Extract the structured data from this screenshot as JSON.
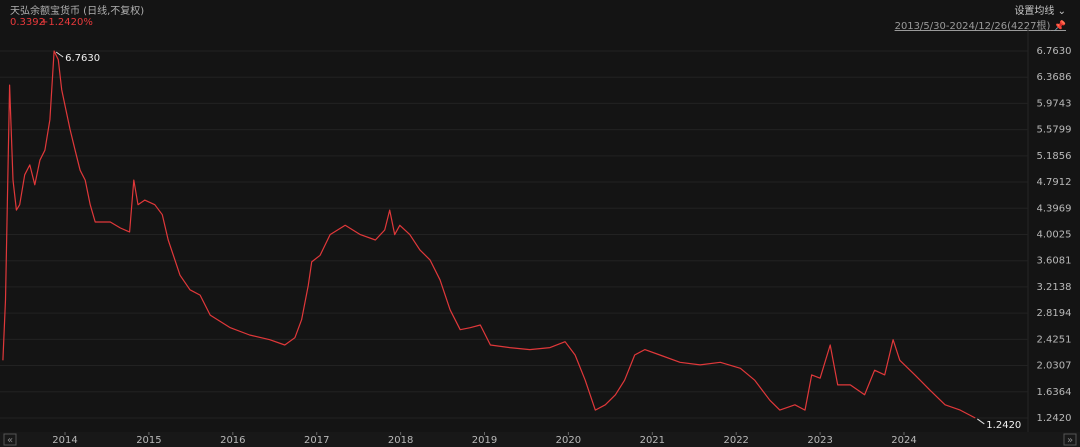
{
  "header": {
    "title": "天弘余额宝货币 (日线,不复权)",
    "change": "0.3392",
    "change_pct": "+1.2420%",
    "ma_setting": "设置均线",
    "range": "2013/5/30-2024/12/26(4227根)"
  },
  "chart_data": {
    "type": "line",
    "color": "#e0383a",
    "grid": true,
    "x": [
      2013.26,
      2013.29,
      2013.34,
      2013.38,
      2013.42,
      2013.46,
      2013.52,
      2013.58,
      2013.64,
      2013.7,
      2013.76,
      2013.82,
      2013.87,
      2013.92,
      2013.96,
      2014.01,
      2014.06,
      2014.12,
      2014.18,
      2014.24,
      2014.3,
      2014.36,
      2014.54,
      2014.66,
      2014.77,
      2014.82,
      2014.87,
      2014.95,
      2015.07,
      2015.16,
      2015.23,
      2015.31,
      2015.37,
      2015.49,
      2015.61,
      2015.73,
      2015.97,
      2016.2,
      2016.44,
      2016.62,
      2016.74,
      2016.82,
      2016.9,
      2016.94,
      2017.04,
      2017.16,
      2017.34,
      2017.52,
      2017.7,
      2017.81,
      2017.87,
      2017.93,
      2017.99,
      2018.11,
      2018.23,
      2018.35,
      2018.47,
      2018.59,
      2018.71,
      2018.83,
      2018.95,
      2019.07,
      2019.3,
      2019.54,
      2019.78,
      2019.96,
      2020.08,
      2020.2,
      2020.32,
      2020.44,
      2020.56,
      2020.67,
      2020.79,
      2020.91,
      2021.09,
      2021.33,
      2021.57,
      2021.81,
      2022.05,
      2022.22,
      2022.4,
      2022.52,
      2022.7,
      2022.82,
      2022.9,
      2023.0,
      2023.12,
      2023.21,
      2023.36,
      2023.53,
      2023.65,
      2023.77,
      2023.87,
      2023.95,
      2024.13,
      2024.31,
      2024.49,
      2024.67,
      2024.85
    ],
    "values": [
      2.11,
      3.02,
      6.25,
      4.82,
      4.37,
      4.45,
      4.9,
      5.05,
      4.75,
      5.12,
      5.27,
      5.73,
      6.763,
      6.63,
      6.18,
      5.88,
      5.58,
      5.27,
      4.97,
      4.82,
      4.45,
      4.19,
      4.19,
      4.1,
      4.04,
      4.82,
      4.45,
      4.52,
      4.45,
      4.3,
      3.92,
      3.62,
      3.39,
      3.17,
      3.09,
      2.79,
      2.6,
      2.49,
      2.42,
      2.34,
      2.45,
      2.72,
      3.24,
      3.59,
      3.69,
      4.0,
      4.14,
      4.0,
      3.92,
      4.07,
      4.37,
      4.0,
      4.14,
      4.0,
      3.77,
      3.62,
      3.32,
      2.87,
      2.57,
      2.6,
      2.64,
      2.34,
      2.3,
      2.27,
      2.3,
      2.39,
      2.19,
      1.81,
      1.36,
      1.44,
      1.59,
      1.81,
      2.19,
      2.27,
      2.19,
      2.08,
      2.04,
      2.08,
      1.99,
      1.81,
      1.51,
      1.36,
      1.44,
      1.36,
      1.89,
      1.84,
      2.34,
      1.74,
      1.74,
      1.59,
      1.96,
      1.89,
      2.42,
      2.11,
      1.89,
      1.66,
      1.44,
      1.36,
      1.242
    ],
    "xlim": [
      2013.225,
      2025.478
    ],
    "xticks": [
      2014,
      2015,
      2016,
      2017,
      2018,
      2019,
      2020,
      2021,
      2022,
      2023,
      2024
    ],
    "ylim": [
      1.061,
      7.109
    ],
    "yticks": [
      {
        "value": 1.242,
        "label": "1.2420"
      },
      {
        "value": 1.6364,
        "label": "1.6364"
      },
      {
        "value": 2.0307,
        "label": "2.0307"
      },
      {
        "value": 2.4251,
        "label": "2.4251"
      },
      {
        "value": 2.8194,
        "label": "2.8194"
      },
      {
        "value": 3.2138,
        "label": "3.2138"
      },
      {
        "value": 3.6081,
        "label": "3.6081"
      },
      {
        "value": 4.0025,
        "label": "4.0025"
      },
      {
        "value": 4.3969,
        "label": "4.3969"
      },
      {
        "value": 4.7912,
        "label": "4.7912"
      },
      {
        "value": 5.1856,
        "label": "5.1856"
      },
      {
        "value": 5.5799,
        "label": "5.5799"
      },
      {
        "value": 5.9743,
        "label": "5.9743"
      },
      {
        "value": 6.3686,
        "label": "6.3686"
      },
      {
        "value": 6.763,
        "label": "6.7630"
      }
    ],
    "annotations": [
      {
        "text": "6.7630",
        "x": 2013.87,
        "y": 6.763
      },
      {
        "text": "1.2420",
        "x": 2024.85,
        "y": 1.242
      }
    ]
  }
}
